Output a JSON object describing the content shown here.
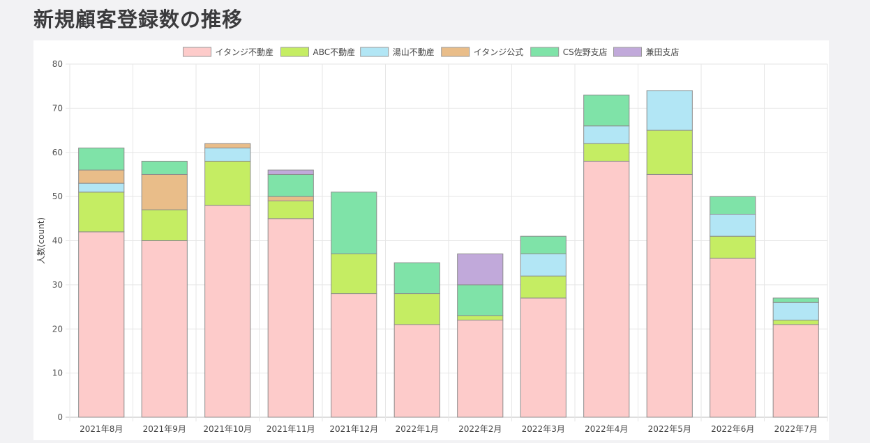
{
  "page": {
    "title": "新規顧客登録数の推移"
  },
  "chart_data": {
    "type": "bar",
    "stacked": true,
    "title": "",
    "xlabel": "",
    "ylabel": "人数(count)",
    "ylim": [
      0,
      80
    ],
    "yticks": [
      0,
      10,
      20,
      30,
      40,
      50,
      60,
      70,
      80
    ],
    "grid": true,
    "legend_position": "top",
    "categories": [
      "2021年8月",
      "2021年9月",
      "2021年10月",
      "2021年11月",
      "2021年12月",
      "2022年1月",
      "2022年2月",
      "2022年3月",
      "2022年4月",
      "2022年5月",
      "2022年6月",
      "2022年7月"
    ],
    "series": [
      {
        "name": "イタンジ不動産",
        "color": "#fdcbca",
        "values": [
          42,
          40,
          48,
          45,
          28,
          21,
          22,
          27,
          58,
          55,
          36,
          21
        ]
      },
      {
        "name": "ABC不動産",
        "color": "#c5ed63",
        "values": [
          9,
          7,
          10,
          4,
          9,
          7,
          1,
          5,
          4,
          10,
          5,
          1
        ]
      },
      {
        "name": "湯山不動産",
        "color": "#b2e6f5",
        "values": [
          2,
          0,
          3,
          0,
          0,
          0,
          0,
          5,
          4,
          9,
          5,
          4
        ]
      },
      {
        "name": "イタンジ公式",
        "color": "#e9bd89",
        "values": [
          3,
          8,
          1,
          1,
          0,
          0,
          0,
          0,
          0,
          0,
          0,
          0
        ]
      },
      {
        "name": "CS佐野支店",
        "color": "#7fe3a8",
        "values": [
          5,
          3,
          0,
          5,
          14,
          7,
          7,
          4,
          7,
          0,
          4,
          1
        ]
      },
      {
        "name": "兼田支店",
        "color": "#c1a9da",
        "values": [
          0,
          0,
          0,
          1,
          0,
          0,
          7,
          0,
          0,
          0,
          0,
          0
        ]
      }
    ]
  }
}
